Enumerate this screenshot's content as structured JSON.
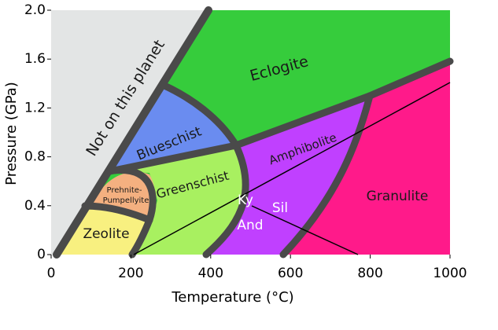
{
  "chart_data": {
    "type": "phase-diagram",
    "xlabel": "Temperature (°C)",
    "ylabel": "Pressure (GPa)",
    "xlim": [
      0,
      1000
    ],
    "ylim": [
      0,
      2.0
    ],
    "xticks": [
      0,
      200,
      400,
      600,
      800,
      1000
    ],
    "yticks": [
      0,
      0.4,
      0.8,
      1.2,
      1.6,
      {
        "value": 2.0,
        "label": "2.0"
      }
    ],
    "regions": [
      "Not on this planet",
      "Eclogite",
      "Blueschist",
      "Prehnite-",
      "Pumpellyite",
      "Greenschist",
      "Amphibolite",
      "Granulite",
      "Zeolite"
    ],
    "minerals": [
      "Ky",
      "Sil",
      "And"
    ]
  }
}
